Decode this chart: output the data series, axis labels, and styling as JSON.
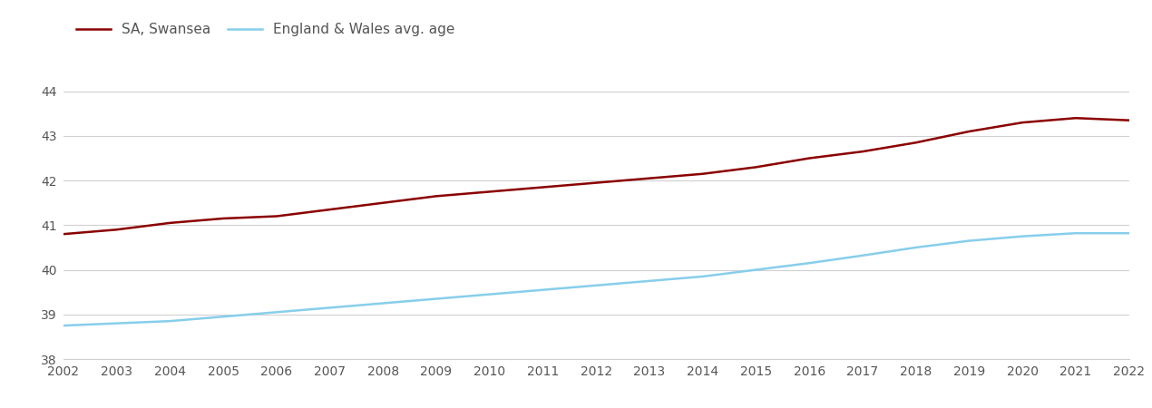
{
  "years": [
    2002,
    2003,
    2004,
    2005,
    2006,
    2007,
    2008,
    2009,
    2010,
    2011,
    2012,
    2013,
    2014,
    2015,
    2016,
    2017,
    2018,
    2019,
    2020,
    2021,
    2022
  ],
  "swansea": [
    40.8,
    40.9,
    41.05,
    41.15,
    41.2,
    41.35,
    41.5,
    41.65,
    41.75,
    41.85,
    41.95,
    42.05,
    42.15,
    42.3,
    42.5,
    42.65,
    42.85,
    43.1,
    43.3,
    43.4,
    43.35
  ],
  "england_wales": [
    38.75,
    38.8,
    38.85,
    38.95,
    39.05,
    39.15,
    39.25,
    39.35,
    39.45,
    39.55,
    39.65,
    39.75,
    39.85,
    40.0,
    40.15,
    40.32,
    40.5,
    40.65,
    40.75,
    40.82,
    40.82
  ],
  "swansea_color": "#8B0000",
  "england_wales_color": "#87CEEB",
  "swansea_label": "SA, Swansea",
  "england_wales_label": "England & Wales avg. age",
  "ylim_min": 38.0,
  "ylim_max": 44.4,
  "yticks": [
    38,
    39,
    40,
    41,
    42,
    43,
    44
  ],
  "background_color": "#ffffff",
  "grid_color": "#d0d0d0",
  "line_width": 1.8,
  "tick_label_color": "#555555",
  "legend_fontsize": 11,
  "tick_fontsize": 10
}
